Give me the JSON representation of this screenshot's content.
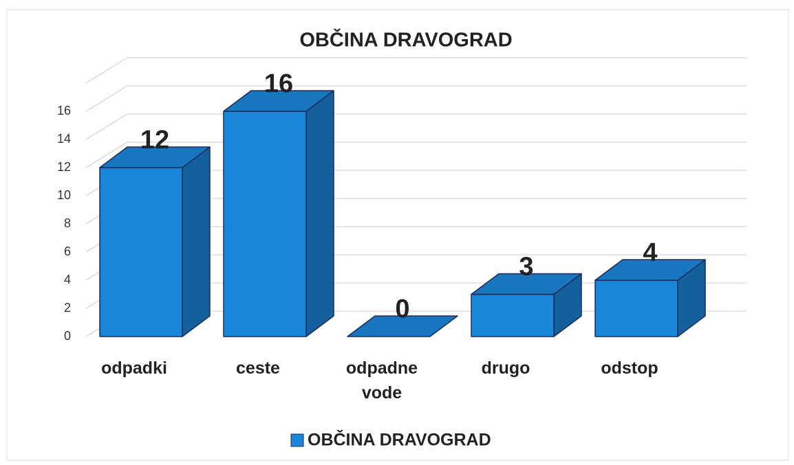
{
  "chart_data": {
    "type": "bar3d",
    "title": "OBČINA DRAVOGRAD",
    "categories": [
      "odpadki",
      "ceste",
      "odpadne vode",
      "drugo",
      "odstop"
    ],
    "series": [
      {
        "name": "OBČINA DRAVOGRAD",
        "color": "#1a86d8",
        "values": [
          12,
          16,
          0,
          3,
          4
        ]
      }
    ],
    "ylim": [
      0,
      18
    ],
    "yticks": [
      0,
      2,
      4,
      6,
      8,
      10,
      12,
      14,
      16
    ],
    "grid": true
  }
}
